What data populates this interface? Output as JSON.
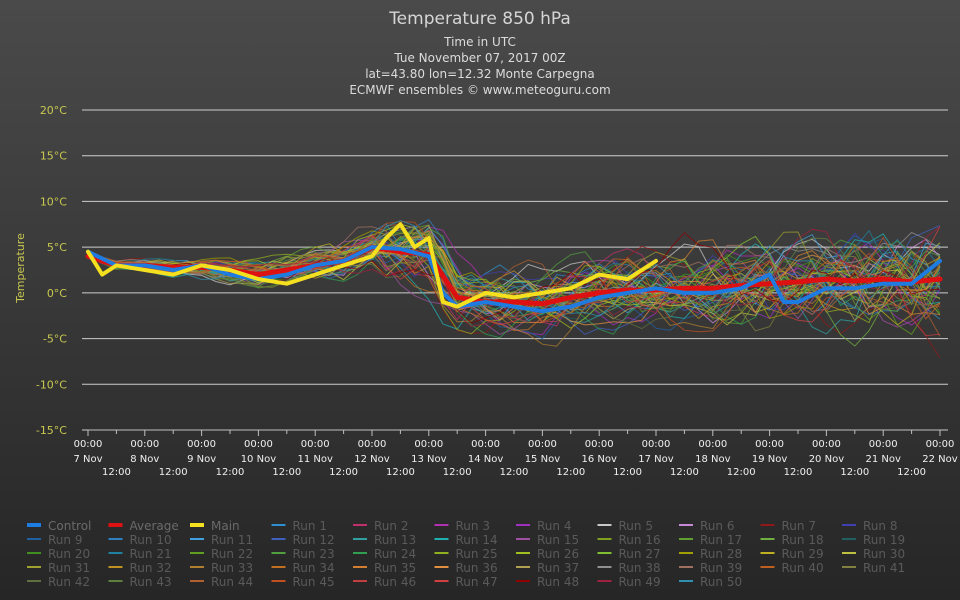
{
  "chart_data": {
    "type": "line",
    "title": "Temperature 850 hPa",
    "subtitles": [
      "Time in UTC",
      "Tue November 07, 2017 00Z",
      "lat=43.80 lon=12.32 Monte Carpegna",
      "ECMWF ensembles © www.meteoguru.com"
    ],
    "ylabel": "Temperature",
    "ylim": [
      -15,
      20
    ],
    "yticks": [
      "-15°C",
      "-10°C",
      "-5°C",
      "0°C",
      "5°C",
      "10°C",
      "15°C",
      "20°C"
    ],
    "grid": true,
    "x_start": "2017-11-07T00:00Z",
    "x_end": "2017-11-22T00:00Z",
    "xticks_top": [
      "00:00",
      "00:00",
      "00:00",
      "00:00",
      "00:00",
      "00:00",
      "00:00",
      "00:00",
      "00:00",
      "00:00",
      "00:00",
      "00:00",
      "00:00",
      "00:00",
      "00:00",
      "00:00"
    ],
    "xticks_date": [
      "7 Nov",
      "8 Nov",
      "9 Nov",
      "10 Nov",
      "11 Nov",
      "12 Nov",
      "13 Nov",
      "14 Nov",
      "15 Nov",
      "16 Nov",
      "17 Nov",
      "18 Nov",
      "19 Nov",
      "20 Nov",
      "21 Nov",
      "22 Nov"
    ],
    "xticks_mid": [
      "12:00",
      "12:00",
      "12:00",
      "12:00",
      "12:00",
      "12:00",
      "12:00",
      "12:00",
      "12:00",
      "12:00",
      "12:00",
      "12:00",
      "12:00",
      "12:00",
      "12:00"
    ],
    "legend_position": "bottom",
    "series": [
      {
        "name": "Control",
        "color": "#1e7be0",
        "width": 4,
        "x": [
          "2017-11-07T00:00Z",
          "2017-11-07T12:00Z",
          "2017-11-08T00:00Z",
          "2017-11-08T12:00Z",
          "2017-11-09T00:00Z",
          "2017-11-09T12:00Z",
          "2017-11-10T00:00Z",
          "2017-11-10T12:00Z",
          "2017-11-11T00:00Z",
          "2017-11-11T12:00Z",
          "2017-11-12T00:00Z",
          "2017-11-12T12:00Z",
          "2017-11-13T00:00Z",
          "2017-11-13T06:00Z",
          "2017-11-13T12:00Z",
          "2017-11-14T00:00Z",
          "2017-11-14T12:00Z",
          "2017-11-15T00:00Z",
          "2017-11-15T12:00Z",
          "2017-11-16T00:00Z",
          "2017-11-16T12:00Z",
          "2017-11-17T00:00Z",
          "2017-11-17T12:00Z",
          "2017-11-18T00:00Z",
          "2017-11-18T12:00Z",
          "2017-11-19T00:00Z",
          "2017-11-19T06:00Z",
          "2017-11-19T12:00Z",
          "2017-11-20T00:00Z",
          "2017-11-20T12:00Z",
          "2017-11-21T00:00Z",
          "2017-11-21T12:00Z",
          "2017-11-22T00:00Z"
        ],
        "y": [
          4.5,
          3,
          3,
          2.5,
          3,
          2,
          1.5,
          2,
          3,
          3.5,
          5,
          4.8,
          4,
          0,
          -1.5,
          -1,
          -1.5,
          -2,
          -1.5,
          -0.5,
          0,
          0.5,
          0,
          0,
          0.5,
          2,
          -1,
          -1,
          0.5,
          0.5,
          1,
          1,
          3.5
        ]
      },
      {
        "name": "Average",
        "color": "#dd1111",
        "width": 5,
        "x": [
          "2017-11-07T00:00Z",
          "2017-11-07T12:00Z",
          "2017-11-08T00:00Z",
          "2017-11-08T12:00Z",
          "2017-11-09T00:00Z",
          "2017-11-09T12:00Z",
          "2017-11-10T00:00Z",
          "2017-11-10T12:00Z",
          "2017-11-11T00:00Z",
          "2017-11-11T12:00Z",
          "2017-11-12T00:00Z",
          "2017-11-12T12:00Z",
          "2017-11-13T00:00Z",
          "2017-11-13T12:00Z",
          "2017-11-14T00:00Z",
          "2017-11-14T12:00Z",
          "2017-11-15T00:00Z",
          "2017-11-15T12:00Z",
          "2017-11-16T00:00Z",
          "2017-11-16T12:00Z",
          "2017-11-17T00:00Z",
          "2017-11-17T12:00Z",
          "2017-11-18T00:00Z",
          "2017-11-18T12:00Z",
          "2017-11-19T00:00Z",
          "2017-11-19T12:00Z",
          "2017-11-20T00:00Z",
          "2017-11-20T12:00Z",
          "2017-11-21T00:00Z",
          "2017-11-21T12:00Z",
          "2017-11-22T00:00Z"
        ],
        "y": [
          4,
          3,
          3,
          2.8,
          2.8,
          2.5,
          2,
          2.5,
          3,
          3.5,
          5,
          4.5,
          4.2,
          -0.5,
          -1,
          -1,
          -1.2,
          -0.5,
          0,
          0.3,
          0.3,
          0.5,
          0.5,
          0.8,
          1,
          1.2,
          1.5,
          1.3,
          1.5,
          1.2,
          1.5
        ]
      },
      {
        "name": "Main",
        "color": "#f5e020",
        "width": 4,
        "x": [
          "2017-11-07T00:00Z",
          "2017-11-07T06:00Z",
          "2017-11-07T12:00Z",
          "2017-11-08T00:00Z",
          "2017-11-08T12:00Z",
          "2017-11-09T00:00Z",
          "2017-11-09T12:00Z",
          "2017-11-10T00:00Z",
          "2017-11-10T12:00Z",
          "2017-11-11T00:00Z",
          "2017-11-11T12:00Z",
          "2017-11-12T00:00Z",
          "2017-11-12T06:00Z",
          "2017-11-12T12:00Z",
          "2017-11-12T18:00Z",
          "2017-11-13T00:00Z",
          "2017-11-13T06:00Z",
          "2017-11-13T12:00Z",
          "2017-11-14T00:00Z",
          "2017-11-14T12:00Z",
          "2017-11-15T00:00Z",
          "2017-11-15T12:00Z",
          "2017-11-16T00:00Z",
          "2017-11-16T12:00Z",
          "2017-11-17T00:00Z"
        ],
        "y": [
          4.5,
          2,
          3,
          2.5,
          2,
          3,
          2.5,
          1.5,
          1,
          2,
          3,
          4,
          6,
          7.5,
          5,
          6,
          -1,
          -1.5,
          0,
          -0.5,
          0,
          0.5,
          2,
          1.5,
          3.5
        ]
      }
    ],
    "ensemble_runs": [
      "Run 1",
      "Run 2",
      "Run 3",
      "Run 4",
      "Run 5",
      "Run 6",
      "Run 7",
      "Run 8",
      "Run 9",
      "Run 10",
      "Run 11",
      "Run 12",
      "Run 13",
      "Run 14",
      "Run 15",
      "Run 16",
      "Run 17",
      "Run 18",
      "Run 19",
      "Run 20",
      "Run 21",
      "Run 22",
      "Run 23",
      "Run 24",
      "Run 25",
      "Run 26",
      "Run 27",
      "Run 28",
      "Run 29",
      "Run 30",
      "Run 31",
      "Run 32",
      "Run 33",
      "Run 34",
      "Run 35",
      "Run 36",
      "Run 37",
      "Run 38",
      "Run 39",
      "Run 40",
      "Run 41",
      "Run 42",
      "Run 43",
      "Run 44",
      "Run 45",
      "Run 46",
      "Run 47",
      "Run 48",
      "Run 49",
      "Run 50"
    ],
    "run_colors": [
      "#2e8fd0",
      "#c0306a",
      "#b030b0",
      "#a030c0",
      "#c8c8c8",
      "#c888d8",
      "#901818",
      "#4040b0",
      "#2060a0",
      "#3080c0",
      "#40a0e0",
      "#4060c0",
      "#30a0a0",
      "#20b0b0",
      "#a050a0",
      "#80a020",
      "#60a030",
      "#70b040",
      "#206060",
      "#409020",
      "#2080a0",
      "#60a020",
      "#50a040",
      "#30a050",
      "#90b020",
      "#a0c020",
      "#80c030",
      "#a0a000",
      "#c0b020",
      "#c0c040",
      "#a0a030",
      "#c09020",
      "#b08030",
      "#c07020",
      "#d08030",
      "#e09040",
      "#b0a050",
      "#909090",
      "#a07060",
      "#c06020",
      "#808040",
      "#607040",
      "#608040",
      "#b06030",
      "#c05020",
      "#c04040",
      "#d04040",
      "#900000",
      "#a02040",
      "#3090b0"
    ]
  }
}
